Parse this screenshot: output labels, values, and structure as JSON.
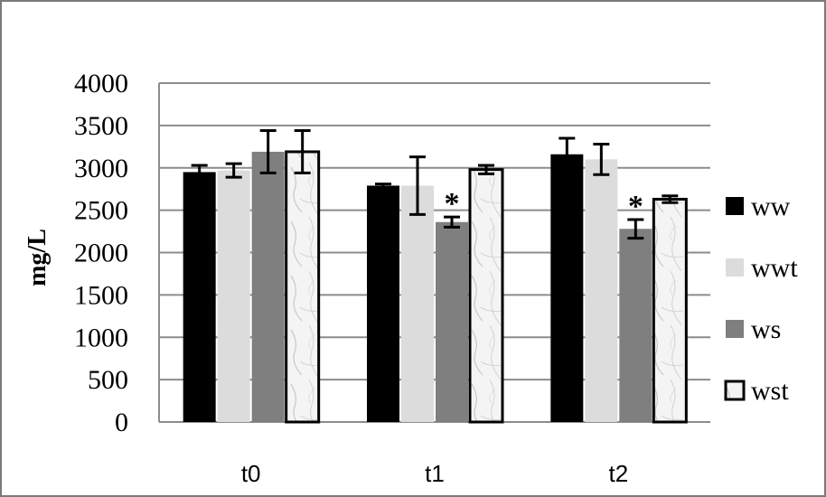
{
  "chart_data": {
    "type": "bar",
    "title": "",
    "xlabel": "",
    "ylabel": "mg/L",
    "ylim": [
      0,
      4000
    ],
    "yticks": [
      "0",
      "500",
      "1000",
      "1500",
      "2000",
      "2500",
      "3000",
      "3500",
      "4000"
    ],
    "categories": [
      "t0",
      "t1",
      "t2"
    ],
    "grid": true,
    "legend_position": "right",
    "series": [
      {
        "name": "ww",
        "color": "#000000",
        "pattern": "solid",
        "values": [
          2950,
          2790,
          3160
        ],
        "errors": [
          80,
          20,
          190
        ]
      },
      {
        "name": "wwt",
        "color": "#dcdcdc",
        "pattern": "solid",
        "values": [
          2970,
          2790,
          3100
        ],
        "errors": [
          80,
          340,
          180
        ]
      },
      {
        "name": "ws",
        "color": "#7f7f7f",
        "pattern": "solid",
        "values": [
          3190,
          2360,
          2280
        ],
        "errors": [
          250,
          60,
          110
        ]
      },
      {
        "name": "wst",
        "color": "#f2f2f2",
        "pattern": "marble",
        "values": [
          3190,
          2980,
          2630
        ],
        "errors": [
          250,
          50,
          40
        ]
      }
    ],
    "annotations": [
      {
        "text": "*",
        "category": "t1",
        "series": "ws"
      },
      {
        "text": "*",
        "category": "t2",
        "series": "ws"
      }
    ]
  }
}
